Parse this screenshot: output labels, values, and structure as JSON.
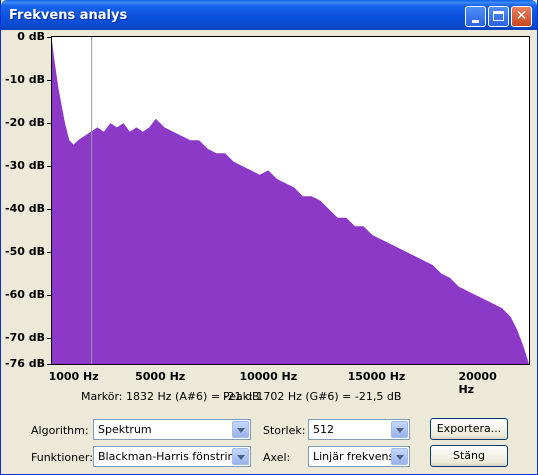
{
  "window": {
    "title": "Frekvens analys",
    "minimize_icon": "minimize-icon",
    "maximize_icon": "maximize-icon",
    "close_icon": "close-icon"
  },
  "chart_data": {
    "type": "area",
    "title": "",
    "xlabel": "",
    "ylabel": "",
    "color": "#8b39c6",
    "xlim": [
      0,
      22050
    ],
    "ylim": [
      -76,
      0
    ],
    "x_ticks": [
      "1000 Hz",
      "5000 Hz",
      "10000 Hz",
      "15000 Hz",
      "20000 Hz"
    ],
    "x_tick_values": [
      1000,
      5000,
      10000,
      15000,
      20000
    ],
    "y_ticks": [
      "0 dB",
      "-10 dB",
      "-20 dB",
      "-30 dB",
      "-40 dB",
      "-50 dB",
      "-60 dB",
      "-70 dB",
      "-76 dB"
    ],
    "y_tick_values": [
      0,
      -10,
      -20,
      -30,
      -40,
      -50,
      -60,
      -70,
      -76
    ],
    "marker_hz": 1832,
    "x": [
      0,
      100,
      300,
      600,
      800,
      1000,
      1200,
      1500,
      1800,
      2100,
      2400,
      2700,
      3000,
      3300,
      3600,
      3900,
      4200,
      4500,
      4800,
      5200,
      5600,
      6000,
      6400,
      6800,
      7200,
      7600,
      8000,
      8400,
      8800,
      9200,
      9600,
      10000,
      10400,
      10800,
      11200,
      11600,
      12000,
      12400,
      12800,
      13200,
      13600,
      14000,
      14400,
      14800,
      15200,
      15600,
      16000,
      16400,
      16800,
      17200,
      17600,
      18000,
      18400,
      18800,
      19200,
      19600,
      20000,
      20400,
      20800,
      21200,
      21500,
      21800,
      22050
    ],
    "y": [
      -1,
      -5,
      -12,
      -20,
      -24,
      -25,
      -24,
      -23,
      -22,
      -21,
      -22,
      -20,
      -21,
      -20,
      -22,
      -21,
      -22,
      -21,
      -19,
      -21,
      -22,
      -23,
      -24,
      -24,
      -26,
      -27,
      -27,
      -29,
      -30,
      -31,
      -32,
      -31,
      -33,
      -34,
      -35,
      -37,
      -37,
      -38,
      -40,
      -42,
      -42,
      -44,
      -44,
      -46,
      -47,
      -48,
      -49,
      -50,
      -51,
      -52,
      -53,
      -55,
      -56,
      -58,
      -59,
      -60,
      -61,
      -62,
      -63,
      -65,
      -68,
      -72,
      -76
    ],
    "grid": false,
    "legend": "none"
  },
  "info": {
    "marker": "Markör: 1832 Hz (A#6) = -21 dB",
    "peak": "Peak: 1702 Hz (G#6) = -21,5 dB"
  },
  "controls": {
    "algorithm_label": "Algorithm:",
    "algorithm_value": "Spektrum",
    "size_label": "Storlek:",
    "size_value": "512",
    "export_button": "Exportera...",
    "functions_label": "Funktioner:",
    "functions_value": "Blackman-Harris fönstring",
    "axis_label": "Axel:",
    "axis_value": "Linjär frekvens",
    "close_button": "Stäng"
  }
}
